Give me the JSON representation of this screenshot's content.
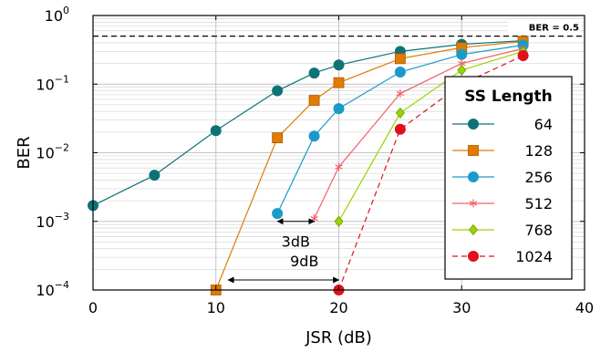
{
  "chart_data": {
    "type": "line",
    "xlabel": "JSR (dB)",
    "ylabel": "BER",
    "xlim": [
      0,
      40
    ],
    "ylim": [
      0.0001,
      1
    ],
    "yscale": "log",
    "grid": true,
    "x_ticks": [
      {
        "value": 0,
        "label": "0"
      },
      {
        "value": 10,
        "label": "10"
      },
      {
        "value": 20,
        "label": "20"
      },
      {
        "value": 30,
        "label": "30"
      },
      {
        "value": 40,
        "label": "40"
      }
    ],
    "y_ticks": [
      {
        "value": 1,
        "base": "10",
        "exp": "0"
      },
      {
        "value": 0.1,
        "base": "10",
        "exp": "−1"
      },
      {
        "value": 0.01,
        "base": "10",
        "exp": "−2"
      },
      {
        "value": 0.001,
        "base": "10",
        "exp": "−3"
      },
      {
        "value": 0.0001,
        "base": "10",
        "exp": "−4"
      }
    ],
    "legend": {
      "title": "SS Length",
      "position": "right"
    },
    "reference_line": {
      "y": 0.5,
      "label": "BER = 0.5",
      "style": "dashed"
    },
    "annotations": [
      {
        "text": "3dB",
        "x_from": 15,
        "x_to": 18,
        "y": 0.001,
        "label_x": 16.5,
        "label_y": 0.00043
      },
      {
        "text": "9dB",
        "x_from": 11,
        "x_to": 20,
        "y": 0.00014,
        "label_x": 17.2,
        "label_y": 0.00022
      }
    ],
    "series": [
      {
        "name": "64",
        "color": "#0d7377",
        "marker": "circle",
        "dashed": false,
        "x": [
          0,
          5,
          10,
          15,
          18,
          20,
          25,
          30,
          35
        ],
        "y": [
          0.0017,
          0.0047,
          0.021,
          0.08,
          0.145,
          0.19,
          0.3,
          0.38,
          0.43
        ]
      },
      {
        "name": "128",
        "color": "#e07b00",
        "marker": "square",
        "dashed": false,
        "x": [
          10,
          15,
          18,
          20,
          25,
          30,
          35
        ],
        "y": [
          0.0001,
          0.0165,
          0.058,
          0.105,
          0.235,
          0.34,
          0.42
        ]
      },
      {
        "name": "256",
        "color": "#1a9ac9",
        "marker": "circle",
        "dashed": false,
        "x": [
          15,
          18,
          20,
          25,
          30,
          35
        ],
        "y": [
          0.0013,
          0.0175,
          0.044,
          0.15,
          0.27,
          0.37
        ]
      },
      {
        "name": "512",
        "color": "#f0606a",
        "marker": "star",
        "dashed": false,
        "x": [
          18,
          20,
          25,
          30,
          35
        ],
        "y": [
          0.0011,
          0.0062,
          0.073,
          0.2,
          0.33
        ]
      },
      {
        "name": "768",
        "color": "#9ad400",
        "marker": "diamond",
        "dashed": false,
        "x": [
          20,
          25,
          30,
          35
        ],
        "y": [
          0.001,
          0.038,
          0.16,
          0.3
        ]
      },
      {
        "name": "1024",
        "color": "#e0101c",
        "marker": "circle",
        "dashed": true,
        "x": [
          20,
          25,
          30,
          35
        ],
        "y": [
          0.0001,
          0.022,
          0.1,
          0.26
        ]
      }
    ]
  }
}
